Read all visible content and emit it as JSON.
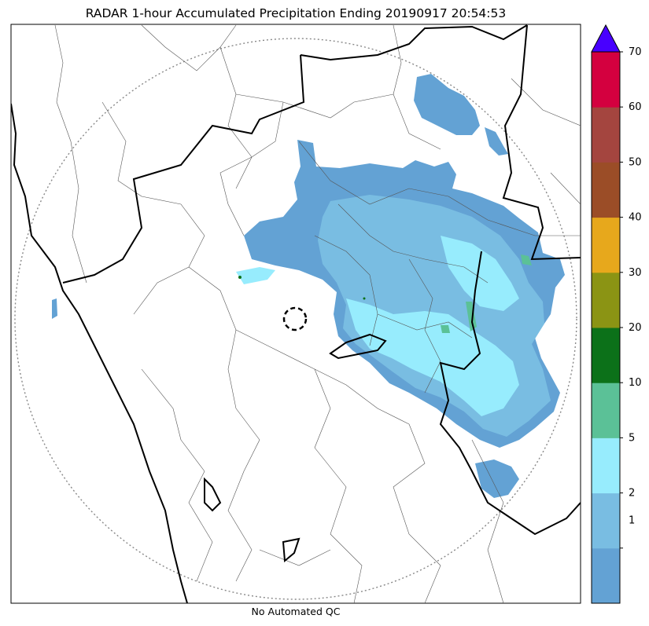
{
  "title": "RADAR 1-hour Accumulated Precipitation Ending 20190917 20:54:53",
  "footer": "No Automated QC",
  "colorbar": {
    "bins": [
      {
        "color": "#63a2d4"
      },
      {
        "color": "#79bde2"
      },
      {
        "color": "#97ecfd"
      },
      {
        "color": "#5bc197"
      },
      {
        "color": "#0c7119"
      },
      {
        "color": "#8b9414"
      },
      {
        "color": "#e7a81c"
      },
      {
        "color": "#9b4d27"
      },
      {
        "color": "#a4453f"
      },
      {
        "color": "#d4003f"
      }
    ],
    "extend_color": "#4800ff",
    "tick_labels": [
      "1",
      "2",
      "5",
      "10",
      "20",
      "30",
      "40",
      "50",
      "60",
      "70"
    ]
  }
}
